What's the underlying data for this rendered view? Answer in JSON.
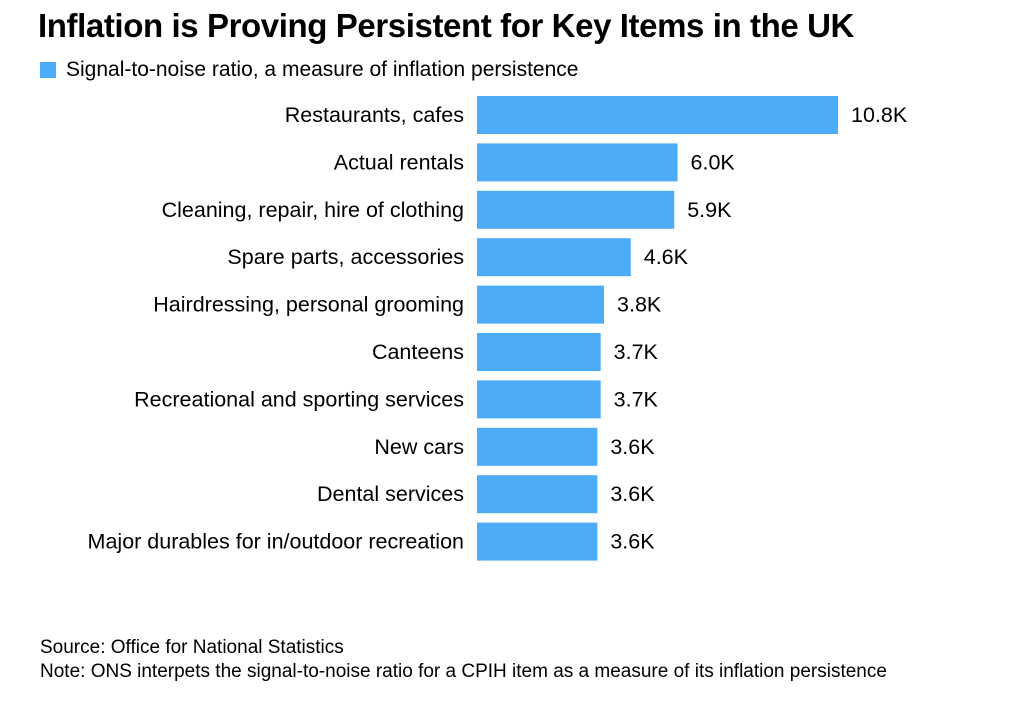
{
  "colors": {
    "bar": "#4dacf7"
  },
  "chart_data": {
    "type": "bar",
    "orientation": "horizontal",
    "title": "Inflation is Proving Persistent for Key Items in the UK",
    "legend": [
      "Signal-to-noise ratio, a measure of inflation persistence"
    ],
    "legend_position": "top-left",
    "categories": [
      "Restaurants, cafes",
      "Actual rentals",
      "Cleaning, repair, hire of clothing",
      "Spare parts, accessories",
      "Hairdressing, personal grooming",
      "Canteens",
      "Recreational and sporting services",
      "New cars",
      "Dental services",
      "Major durables for in/outdoor recreation"
    ],
    "values": [
      10800,
      6000,
      5900,
      4600,
      3800,
      3700,
      3700,
      3600,
      3600,
      3600
    ],
    "value_labels": [
      "10.8K",
      "6.0K",
      "5.9K",
      "4.6K",
      "3.8K",
      "3.7K",
      "3.7K",
      "3.6K",
      "3.6K",
      "3.6K"
    ],
    "xlim": [
      0,
      10800
    ],
    "grid": false
  },
  "footer": {
    "source": "Source: Office for National Statistics",
    "note": "Note: ONS interpets the signal-to-noise ratio for a CPIH item as a measure of its inflation persistence"
  }
}
